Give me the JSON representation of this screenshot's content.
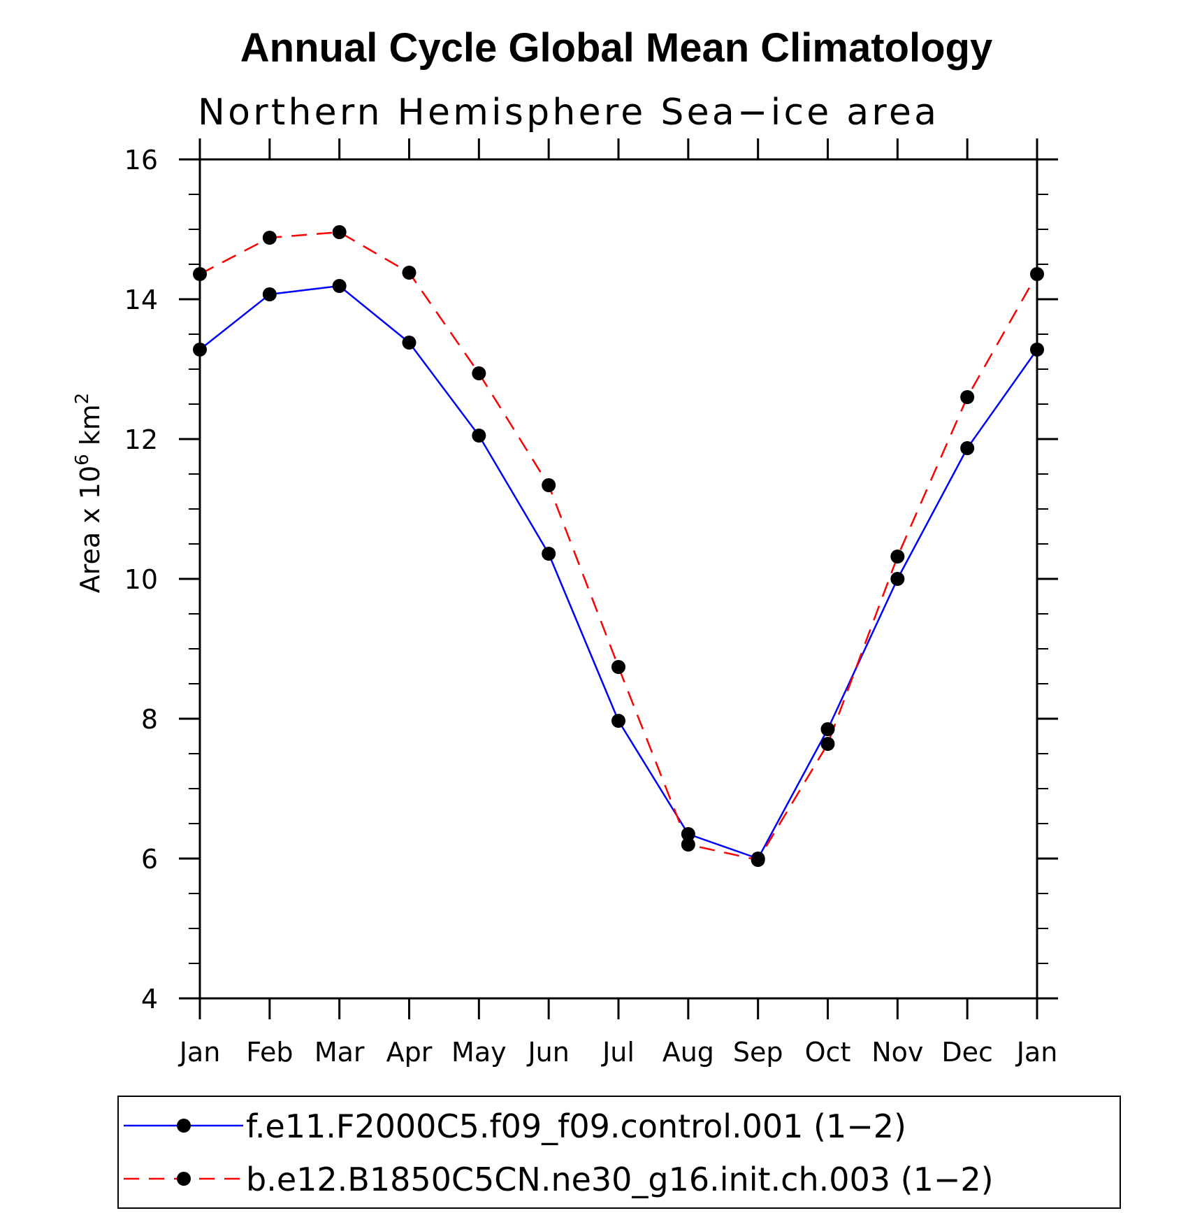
{
  "chart_data": {
    "type": "line",
    "title": "Annual Cycle Global Mean Climatology",
    "subtitle": "Northern Hemisphere Sea−ice area",
    "ylabel": "Area x 10",
    "ylabel_exponent": "6",
    "ylabel_unit": "km",
    "ylabel_unit_exponent": "2",
    "xlabel": "",
    "categories": [
      "Jan",
      "Feb",
      "Mar",
      "Apr",
      "May",
      "Jun",
      "Jul",
      "Aug",
      "Sep",
      "Oct",
      "Nov",
      "Dec",
      "Jan"
    ],
    "ylim": [
      4,
      16
    ],
    "yticks": [
      4,
      6,
      8,
      10,
      12,
      14,
      16
    ],
    "yminor_step": 0.5,
    "grid": false,
    "series": [
      {
        "name": "f.e11.F2000C5.f09_f09.control.001 (1−2)",
        "color": "#0000ff",
        "style": "solid",
        "marker": "filled-circle",
        "values": [
          13.28,
          14.07,
          14.19,
          13.38,
          12.05,
          10.36,
          7.97,
          6.35,
          6.0,
          7.85,
          10.0,
          11.87,
          13.28
        ]
      },
      {
        "name": "b.e12.B1850C5CN.ne30_g16.init.ch.003 (1−2)",
        "color": "#ff0000",
        "style": "dashed",
        "marker": "filled-circle",
        "values": [
          14.36,
          14.88,
          14.96,
          14.38,
          12.94,
          11.34,
          8.74,
          6.2,
          5.98,
          7.64,
          10.32,
          12.6,
          14.36
        ]
      }
    ],
    "legend_position": "bottom"
  }
}
